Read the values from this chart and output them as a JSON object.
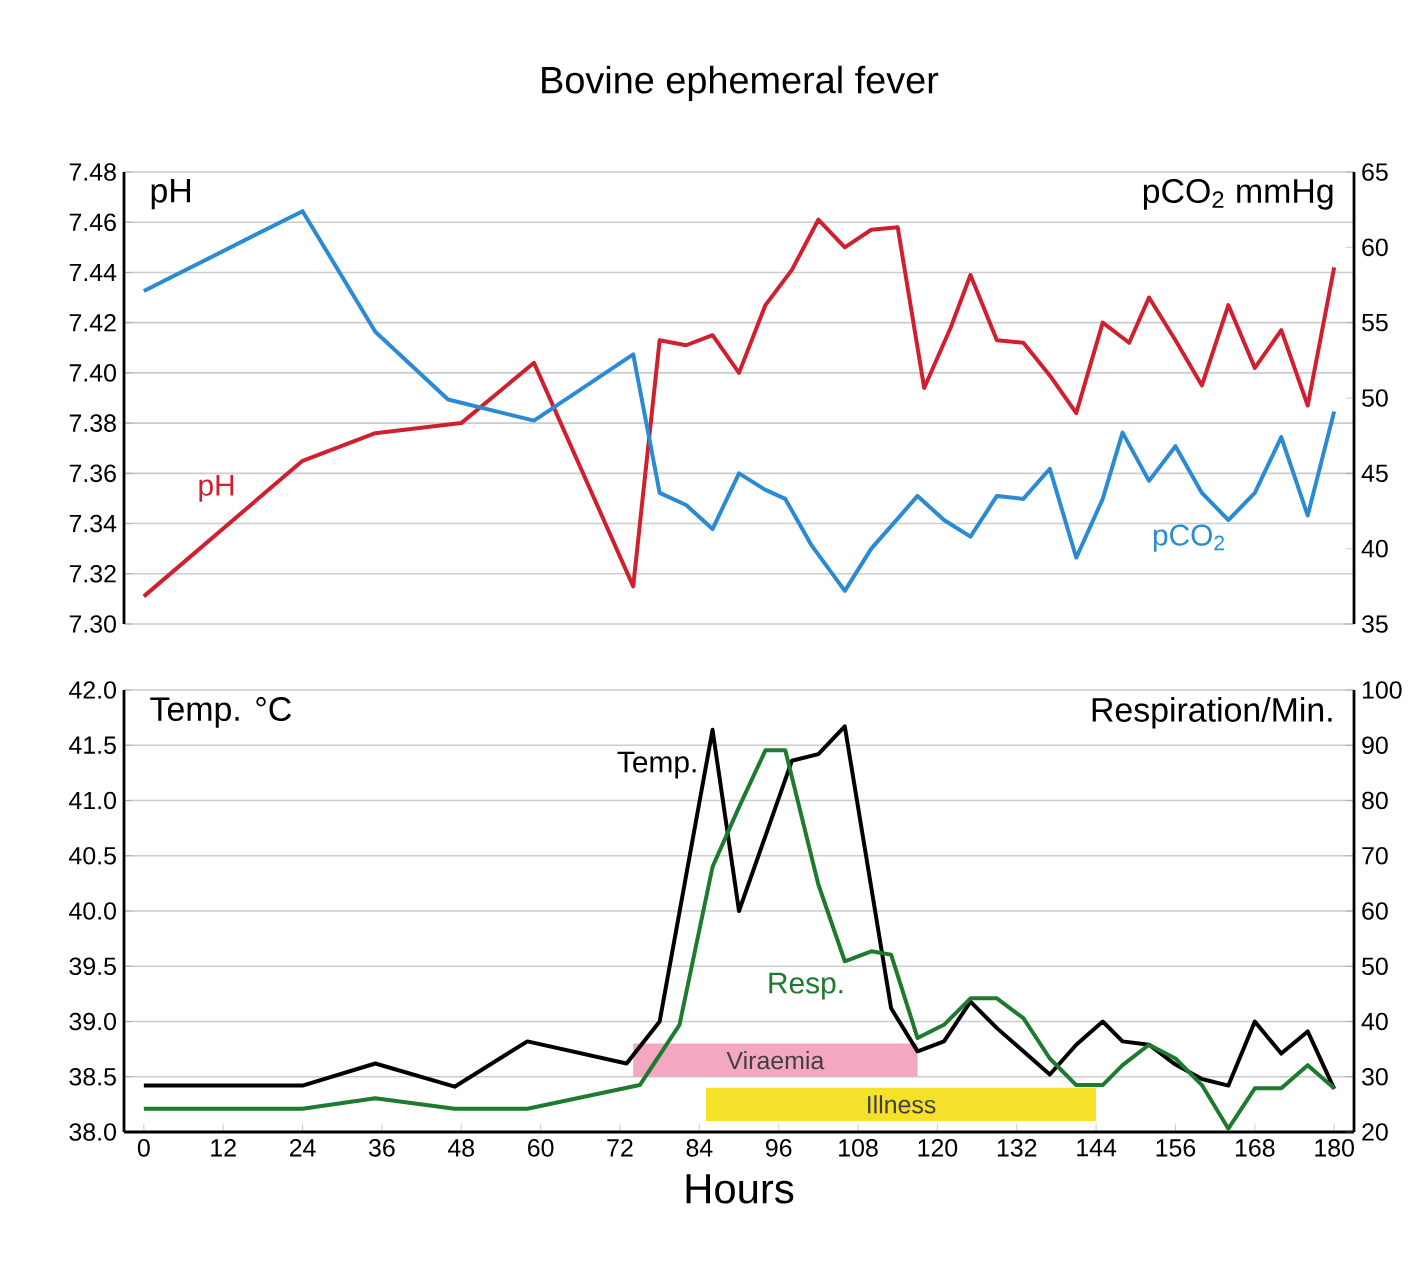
{
  "chart_data": [
    {
      "type": "line",
      "title": "Bovine ephemeral fever",
      "ylabel": "pH",
      "y2label": "pCO$_{2}$ mmHg",
      "xlim": [
        -3,
        183
      ],
      "ylim": [
        7.3,
        7.48
      ],
      "yticks": [
        {
          "value": 7.3,
          "label": "7.30"
        },
        7.32,
        7.34,
        7.36,
        7.38,
        {
          "value": 7.4,
          "label": "7.40"
        },
        7.42,
        7.44,
        7.46,
        7.48
      ],
      "y2lim": [
        35,
        65
      ],
      "y2ticks": [
        35,
        40,
        45,
        50,
        55,
        60,
        65
      ],
      "tick_labels": "y",
      "grid": "y",
      "marker": "none",
      "line_style": "solid",
      "series": [
        {
          "name": "pH",
          "color": "#d0202e",
          "axis": "y",
          "x": [
            0,
            24,
            35,
            48,
            59,
            74,
            78,
            82,
            86,
            90,
            94,
            98,
            102,
            106,
            110,
            114,
            118,
            122,
            125,
            129,
            133,
            137,
            141,
            145,
            149,
            152,
            156,
            160,
            164,
            168,
            172,
            176,
            180
          ],
          "values": [
            7.311,
            7.365,
            7.376,
            7.38,
            7.404,
            7.315,
            7.413,
            7.411,
            7.415,
            7.4,
            7.427,
            7.441,
            7.461,
            7.45,
            7.457,
            7.458,
            7.394,
            7.418,
            7.439,
            7.413,
            7.412,
            7.399,
            7.384,
            7.42,
            7.412,
            7.43,
            7.413,
            7.395,
            7.427,
            7.402,
            7.417,
            7.387,
            7.442
          ]
        },
        {
          "name": "pCO$_{2}$",
          "color": "#2a8ad4",
          "axis": "y2",
          "x": [
            0,
            24,
            35,
            46,
            59,
            74,
            78,
            82,
            86,
            90,
            94,
            97,
            101,
            106,
            110,
            113,
            117,
            121,
            125,
            129,
            133,
            137,
            141,
            145,
            148,
            152,
            156,
            160,
            164,
            168,
            172,
            176,
            180
          ],
          "values": [
            57.1,
            62.4,
            54.4,
            49.9,
            48.5,
            52.9,
            43.7,
            42.9,
            41.3,
            45.0,
            43.9,
            43.3,
            40.2,
            37.2,
            40.0,
            41.5,
            43.5,
            41.9,
            40.8,
            43.5,
            43.3,
            45.3,
            39.4,
            43.3,
            47.7,
            44.5,
            46.8,
            43.7,
            41.9,
            43.7,
            47.4,
            42.2,
            49.1
          ]
        }
      ]
    },
    {
      "type": "line",
      "xlabel": "Hours",
      "ylabel": "Temp. °C",
      "y2label": "Respiration/Min.",
      "xlim": [
        -3,
        183
      ],
      "xticks": [
        0,
        12,
        24,
        36,
        48,
        60,
        72,
        84,
        96,
        108,
        120,
        132,
        144,
        156,
        168,
        180
      ],
      "ylim": [
        38,
        42
      ],
      "yticks": [
        {
          "value": 38,
          "label": "38.0"
        },
        38.5,
        {
          "value": 39,
          "label": "39.0"
        },
        39.5,
        {
          "value": 40,
          "label": "40.0"
        },
        40.5,
        {
          "value": 41,
          "label": "41.0"
        },
        41.5,
        {
          "value": 42,
          "label": "42.0"
        }
      ],
      "y2lim": [
        20,
        100
      ],
      "y2ticks": [
        20,
        30,
        40,
        50,
        60,
        70,
        80,
        90,
        100
      ],
      "grid": "y",
      "marker": "none",
      "line_style": "solid",
      "bands": [
        {
          "axis": "x",
          "from": 74,
          "to": 117,
          "label": "Viraemia",
          "color": "#f4a7c0"
        },
        {
          "axis": "x",
          "from": 85,
          "to": 144,
          "label": "Illness",
          "color": "#f5e02a"
        }
      ],
      "series": [
        {
          "name": "Temp.",
          "color": "#000000",
          "axis": "y",
          "x": [
            0,
            24,
            35,
            47,
            58,
            73,
            78,
            86,
            90,
            98,
            102,
            106,
            113,
            117,
            121,
            125,
            129,
            133,
            137,
            141,
            145,
            148,
            152,
            156,
            160,
            164,
            168,
            172,
            176,
            180
          ],
          "values": [
            38.42,
            38.42,
            38.62,
            38.41,
            38.82,
            38.62,
            39.0,
            41.64,
            40.0,
            41.36,
            41.42,
            41.67,
            39.12,
            38.73,
            38.82,
            39.18,
            38.94,
            38.73,
            38.52,
            38.79,
            39.0,
            38.82,
            38.79,
            38.61,
            38.48,
            38.42,
            39.0,
            38.71,
            38.91,
            38.39
          ]
        },
        {
          "name": "Resp.",
          "color": "#1e7a2e",
          "axis": "y2",
          "x": [
            0,
            24,
            35,
            47,
            58,
            75,
            81,
            86,
            90,
            94,
            97,
            102,
            106,
            110,
            113,
            117,
            121,
            125,
            129,
            133,
            137,
            141,
            145,
            148,
            152,
            156,
            160,
            164,
            168,
            172,
            176,
            180
          ],
          "values": [
            24.2,
            24.2,
            26.1,
            24.2,
            24.2,
            28.5,
            39.4,
            68,
            78.8,
            89.1,
            89.1,
            64.8,
            50.9,
            52.7,
            52.1,
            37.0,
            39.4,
            44.2,
            44.2,
            40.6,
            33.3,
            28.5,
            28.5,
            32.1,
            35.8,
            33.3,
            28.5,
            20.6,
            27.9,
            27.9,
            32.1,
            27.9
          ]
        }
      ]
    }
  ]
}
